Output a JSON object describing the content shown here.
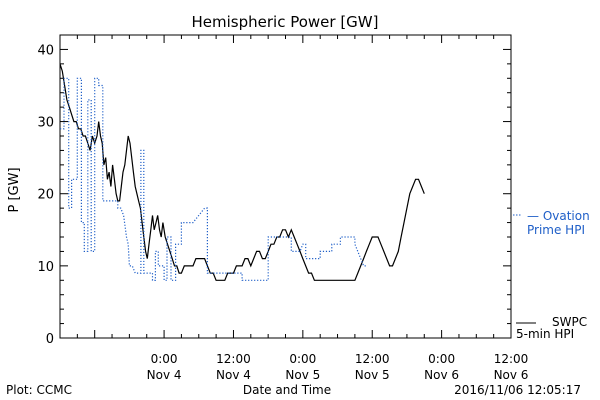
{
  "chart_data": {
    "type": "line",
    "title": "Hemispheric Power [GW]",
    "xlabel": "Date and Time",
    "ylabel": "P [GW]",
    "xlim": [
      -18,
      60
    ],
    "ylim": [
      0,
      42
    ],
    "grid": false,
    "legend_position": "right",
    "x_unit": "hours relative to 2016-11-04 00:00 UT",
    "y_ticks": [
      "0",
      "10",
      "20",
      "30",
      "40"
    ],
    "x_ticks": [
      {
        "x": 0,
        "time": "0:00",
        "date": "Nov 4"
      },
      {
        "x": 12,
        "time": "12:00",
        "date": "Nov 4"
      },
      {
        "x": 24,
        "time": "0:00",
        "date": "Nov 5"
      },
      {
        "x": 36,
        "time": "12:00",
        "date": "Nov 5"
      },
      {
        "x": 48,
        "time": "0:00",
        "date": "Nov 6"
      },
      {
        "x": 60,
        "time": "12:00",
        "date": "Nov 6"
      }
    ],
    "series": [
      {
        "name": "SWPC 5-min HPI",
        "label_lines": [
          "SWPC",
          "5-min HPI"
        ],
        "color": "#000000",
        "style": "solid",
        "points": [
          [
            -18,
            38
          ],
          [
            -17.6,
            37
          ],
          [
            -17.2,
            35
          ],
          [
            -16.8,
            33
          ],
          [
            -16.4,
            32
          ],
          [
            -16,
            31
          ],
          [
            -15.6,
            30
          ],
          [
            -15.2,
            30
          ],
          [
            -14.8,
            29
          ],
          [
            -14.4,
            29
          ],
          [
            -14,
            28
          ],
          [
            -13.6,
            28
          ],
          [
            -13.2,
            27
          ],
          [
            -12.8,
            26
          ],
          [
            -12.4,
            28
          ],
          [
            -12,
            27
          ],
          [
            -11.6,
            28
          ],
          [
            -11.3,
            30
          ],
          [
            -11,
            28
          ],
          [
            -10.7,
            27
          ],
          [
            -10.4,
            24
          ],
          [
            -10.1,
            25
          ],
          [
            -9.8,
            22
          ],
          [
            -9.5,
            23
          ],
          [
            -9.2,
            21
          ],
          [
            -8.9,
            24
          ],
          [
            -8.6,
            22
          ],
          [
            -8.3,
            20
          ],
          [
            -8,
            19
          ],
          [
            -7.7,
            19
          ],
          [
            -7.4,
            21
          ],
          [
            -7.1,
            23
          ],
          [
            -6.8,
            24
          ],
          [
            -6.5,
            26
          ],
          [
            -6.2,
            28
          ],
          [
            -5.9,
            27
          ],
          [
            -5.6,
            25
          ],
          [
            -5.3,
            23
          ],
          [
            -5,
            21
          ],
          [
            -4.7,
            20
          ],
          [
            -4.4,
            19
          ],
          [
            -4.1,
            18
          ],
          [
            -3.8,
            16
          ],
          [
            -3.5,
            14
          ],
          [
            -3.2,
            12
          ],
          [
            -2.9,
            11
          ],
          [
            -2.6,
            13
          ],
          [
            -2.3,
            15
          ],
          [
            -2,
            17
          ],
          [
            -1.7,
            15
          ],
          [
            -1.4,
            16
          ],
          [
            -1.1,
            17
          ],
          [
            -0.8,
            15
          ],
          [
            -0.5,
            14
          ],
          [
            -0.2,
            16
          ],
          [
            0.2,
            14
          ],
          [
            0.6,
            13
          ],
          [
            1,
            12
          ],
          [
            1.4,
            11
          ],
          [
            1.8,
            10
          ],
          [
            2.2,
            10
          ],
          [
            2.6,
            9
          ],
          [
            3,
            9
          ],
          [
            3.5,
            10
          ],
          [
            4,
            10
          ],
          [
            4.5,
            10
          ],
          [
            5,
            10
          ],
          [
            5.5,
            11
          ],
          [
            6,
            11
          ],
          [
            6.5,
            11
          ],
          [
            7,
            11
          ],
          [
            7.5,
            10
          ],
          [
            8,
            9
          ],
          [
            8.5,
            9
          ],
          [
            9,
            8
          ],
          [
            9.5,
            8
          ],
          [
            10,
            8
          ],
          [
            10.5,
            8
          ],
          [
            11,
            9
          ],
          [
            11.5,
            9
          ],
          [
            12,
            9
          ],
          [
            12.5,
            10
          ],
          [
            13,
            10
          ],
          [
            13.5,
            10
          ],
          [
            14,
            11
          ],
          [
            14.5,
            11
          ],
          [
            15,
            10
          ],
          [
            15.5,
            11
          ],
          [
            16,
            12
          ],
          [
            16.5,
            12
          ],
          [
            17,
            11
          ],
          [
            17.5,
            11
          ],
          [
            18,
            12
          ],
          [
            18.5,
            13
          ],
          [
            19,
            13
          ],
          [
            19.5,
            14
          ],
          [
            20,
            14
          ],
          [
            20.5,
            15
          ],
          [
            21,
            15
          ],
          [
            21.5,
            14
          ],
          [
            22,
            15
          ],
          [
            22.5,
            14
          ],
          [
            23,
            13
          ],
          [
            23.5,
            12
          ],
          [
            24,
            11
          ],
          [
            24.5,
            10
          ],
          [
            25,
            9
          ],
          [
            25.5,
            9
          ],
          [
            26,
            8
          ],
          [
            26.5,
            8
          ],
          [
            27,
            8
          ],
          [
            28,
            8
          ],
          [
            30,
            8
          ],
          [
            32,
            8
          ],
          [
            33,
            8
          ],
          [
            33.5,
            9
          ],
          [
            34,
            10
          ],
          [
            34.5,
            11
          ],
          [
            35,
            12
          ],
          [
            35.5,
            13
          ],
          [
            36,
            14
          ],
          [
            36.5,
            14
          ],
          [
            37,
            14
          ],
          [
            37.5,
            13
          ],
          [
            38,
            12
          ],
          [
            38.5,
            11
          ],
          [
            39,
            10
          ],
          [
            39.5,
            10
          ],
          [
            40,
            11
          ],
          [
            40.5,
            12
          ],
          [
            41,
            14
          ],
          [
            41.5,
            16
          ],
          [
            42,
            18
          ],
          [
            42.5,
            20
          ],
          [
            43,
            21
          ],
          [
            43.5,
            22
          ],
          [
            44,
            22
          ],
          [
            44.5,
            21
          ],
          [
            45,
            20
          ]
        ]
      },
      {
        "name": "Ovation Prime HPI",
        "label_lines": [
          "— Ovation",
          "Prime HPI"
        ],
        "color": "#1f5fc8",
        "style": "dotted",
        "points": [
          [
            -18,
            29
          ],
          [
            -17.3,
            29
          ],
          [
            -17.3,
            36
          ],
          [
            -16.5,
            36
          ],
          [
            -16.5,
            18
          ],
          [
            -16,
            18
          ],
          [
            -16,
            22
          ],
          [
            -15,
            22
          ],
          [
            -15,
            36
          ],
          [
            -14.3,
            36
          ],
          [
            -14.3,
            16
          ],
          [
            -13.8,
            16
          ],
          [
            -13.8,
            12
          ],
          [
            -13.2,
            12
          ],
          [
            -13.2,
            33
          ],
          [
            -12.6,
            33
          ],
          [
            -12.6,
            12
          ],
          [
            -12,
            12
          ],
          [
            -12,
            36
          ],
          [
            -11.3,
            36
          ],
          [
            -11.3,
            35
          ],
          [
            -10.6,
            35
          ],
          [
            -10.6,
            19
          ],
          [
            -8,
            19
          ],
          [
            -8,
            18
          ],
          [
            -7.5,
            18
          ],
          [
            -7,
            17
          ],
          [
            -6.5,
            14
          ],
          [
            -6.2,
            13
          ],
          [
            -6,
            10
          ],
          [
            -5.5,
            10
          ],
          [
            -5,
            9
          ],
          [
            -4.5,
            9
          ],
          [
            -4,
            9
          ],
          [
            -4,
            26
          ],
          [
            -3.5,
            26
          ],
          [
            -3.5,
            9
          ],
          [
            -2,
            9
          ],
          [
            -2,
            8
          ],
          [
            -1.5,
            8
          ],
          [
            -1.5,
            12
          ],
          [
            -1,
            12
          ],
          [
            -1,
            10
          ],
          [
            0,
            10
          ],
          [
            0,
            8
          ],
          [
            0.5,
            8
          ],
          [
            0.5,
            14
          ],
          [
            1.2,
            14
          ],
          [
            1.2,
            8
          ],
          [
            2,
            8
          ],
          [
            2,
            13
          ],
          [
            3,
            13
          ],
          [
            3,
            16
          ],
          [
            4,
            16
          ],
          [
            5,
            16
          ],
          [
            6,
            17
          ],
          [
            7,
            18
          ],
          [
            7.5,
            18
          ],
          [
            7.5,
            9
          ],
          [
            13.5,
            9
          ],
          [
            13.5,
            8
          ],
          [
            15,
            8
          ],
          [
            18,
            8
          ],
          [
            18,
            14
          ],
          [
            18.5,
            14
          ],
          [
            22,
            14
          ],
          [
            22,
            12
          ],
          [
            22.5,
            12
          ],
          [
            23.5,
            12
          ],
          [
            24,
            13
          ],
          [
            24.5,
            13
          ],
          [
            24.5,
            11
          ],
          [
            25,
            11
          ],
          [
            27,
            11
          ],
          [
            27,
            12
          ],
          [
            29,
            12
          ],
          [
            29,
            13
          ],
          [
            30.5,
            13
          ],
          [
            30.5,
            14
          ],
          [
            33,
            14
          ],
          [
            33,
            13
          ],
          [
            33.5,
            12
          ],
          [
            34,
            11
          ],
          [
            34.5,
            10
          ],
          [
            35,
            10
          ]
        ]
      }
    ]
  },
  "footer": {
    "left": "Plot: CCMC",
    "right": "2016/11/06 12:05:17"
  }
}
